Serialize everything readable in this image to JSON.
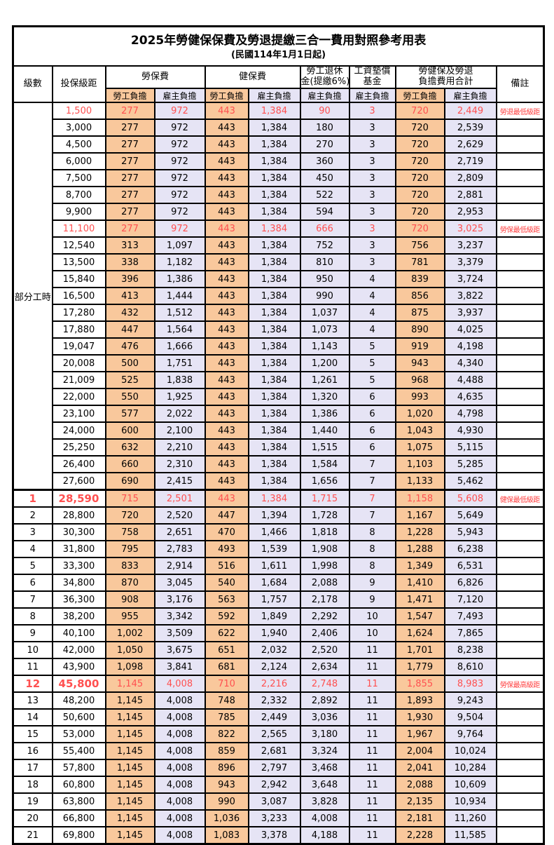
{
  "title": "2025年勞健保保費及勞退提繳三合一費用對照參考用表",
  "subtitle": "(民國114年1月1日起)",
  "header": {
    "level": "級數",
    "bracket": "投保級距",
    "labor": "勞保費",
    "health": "健保費",
    "pension_line1": "勞工退休",
    "pension_line2": "金(提繳6%)",
    "wage_line1": "工資墊償",
    "wage_line2": "基金",
    "total_line1": "勞健保及勞退",
    "total_line2": "負擔費用合計",
    "remark": "備註",
    "employee": "勞工負擔",
    "employer": "雇主負擔"
  },
  "part_time_label": "部分工時",
  "colors": {
    "employee_bg": "#F9C89C",
    "employer_bg": "#E6E4F5",
    "highlight_text": "#FF5050",
    "remark_text": "#FF4040",
    "border": "#000000"
  },
  "rows": [
    {
      "level": "",
      "bracket": "1,500",
      "values": [
        "277",
        "972",
        "443",
        "1,384",
        "90",
        "3",
        "720",
        "2,449"
      ],
      "remark": "勞退最低級距",
      "highlight": true,
      "bold": false
    },
    {
      "level": "",
      "bracket": "3,000",
      "values": [
        "277",
        "972",
        "443",
        "1,384",
        "180",
        "3",
        "720",
        "2,539"
      ],
      "remark": "",
      "highlight": false,
      "bold": false
    },
    {
      "level": "",
      "bracket": "4,500",
      "values": [
        "277",
        "972",
        "443",
        "1,384",
        "270",
        "3",
        "720",
        "2,629"
      ],
      "remark": "",
      "highlight": false,
      "bold": false
    },
    {
      "level": "",
      "bracket": "6,000",
      "values": [
        "277",
        "972",
        "443",
        "1,384",
        "360",
        "3",
        "720",
        "2,719"
      ],
      "remark": "",
      "highlight": false,
      "bold": false
    },
    {
      "level": "",
      "bracket": "7,500",
      "values": [
        "277",
        "972",
        "443",
        "1,384",
        "450",
        "3",
        "720",
        "2,809"
      ],
      "remark": "",
      "highlight": false,
      "bold": false
    },
    {
      "level": "",
      "bracket": "8,700",
      "values": [
        "277",
        "972",
        "443",
        "1,384",
        "522",
        "3",
        "720",
        "2,881"
      ],
      "remark": "",
      "highlight": false,
      "bold": false
    },
    {
      "level": "",
      "bracket": "9,900",
      "values": [
        "277",
        "972",
        "443",
        "1,384",
        "594",
        "3",
        "720",
        "2,953"
      ],
      "remark": "",
      "highlight": false,
      "bold": false
    },
    {
      "level": "",
      "bracket": "11,100",
      "values": [
        "277",
        "972",
        "443",
        "1,384",
        "666",
        "3",
        "720",
        "3,025"
      ],
      "remark": "勞保最低級距",
      "highlight": true,
      "bold": false
    },
    {
      "level": "",
      "bracket": "12,540",
      "values": [
        "313",
        "1,097",
        "443",
        "1,384",
        "752",
        "3",
        "756",
        "3,237"
      ],
      "remark": "",
      "highlight": false,
      "bold": false
    },
    {
      "level": "",
      "bracket": "13,500",
      "values": [
        "338",
        "1,182",
        "443",
        "1,384",
        "810",
        "3",
        "781",
        "3,379"
      ],
      "remark": "",
      "highlight": false,
      "bold": false
    },
    {
      "level": "",
      "bracket": "15,840",
      "values": [
        "396",
        "1,386",
        "443",
        "1,384",
        "950",
        "4",
        "839",
        "3,724"
      ],
      "remark": "",
      "highlight": false,
      "bold": false
    },
    {
      "level": "",
      "bracket": "16,500",
      "values": [
        "413",
        "1,444",
        "443",
        "1,384",
        "990",
        "4",
        "856",
        "3,822"
      ],
      "remark": "",
      "highlight": false,
      "bold": false
    },
    {
      "level": "",
      "bracket": "17,280",
      "values": [
        "432",
        "1,512",
        "443",
        "1,384",
        "1,037",
        "4",
        "875",
        "3,937"
      ],
      "remark": "",
      "highlight": false,
      "bold": false
    },
    {
      "level": "",
      "bracket": "17,880",
      "values": [
        "447",
        "1,564",
        "443",
        "1,384",
        "1,073",
        "4",
        "890",
        "4,025"
      ],
      "remark": "",
      "highlight": false,
      "bold": false
    },
    {
      "level": "",
      "bracket": "19,047",
      "values": [
        "476",
        "1,666",
        "443",
        "1,384",
        "1,143",
        "5",
        "919",
        "4,198"
      ],
      "remark": "",
      "highlight": false,
      "bold": false
    },
    {
      "level": "",
      "bracket": "20,008",
      "values": [
        "500",
        "1,751",
        "443",
        "1,384",
        "1,200",
        "5",
        "943",
        "4,340"
      ],
      "remark": "",
      "highlight": false,
      "bold": false
    },
    {
      "level": "",
      "bracket": "21,009",
      "values": [
        "525",
        "1,838",
        "443",
        "1,384",
        "1,261",
        "5",
        "968",
        "4,488"
      ],
      "remark": "",
      "highlight": false,
      "bold": false
    },
    {
      "level": "",
      "bracket": "22,000",
      "values": [
        "550",
        "1,925",
        "443",
        "1,384",
        "1,320",
        "6",
        "993",
        "4,635"
      ],
      "remark": "",
      "highlight": false,
      "bold": false
    },
    {
      "level": "",
      "bracket": "23,100",
      "values": [
        "577",
        "2,022",
        "443",
        "1,384",
        "1,386",
        "6",
        "1,020",
        "4,798"
      ],
      "remark": "",
      "highlight": false,
      "bold": false
    },
    {
      "level": "",
      "bracket": "24,000",
      "values": [
        "600",
        "2,100",
        "443",
        "1,384",
        "1,440",
        "6",
        "1,043",
        "4,930"
      ],
      "remark": "",
      "highlight": false,
      "bold": false
    },
    {
      "level": "",
      "bracket": "25,250",
      "values": [
        "632",
        "2,210",
        "443",
        "1,384",
        "1,515",
        "6",
        "1,075",
        "5,115"
      ],
      "remark": "",
      "highlight": false,
      "bold": false
    },
    {
      "level": "",
      "bracket": "26,400",
      "values": [
        "660",
        "2,310",
        "443",
        "1,384",
        "1,584",
        "7",
        "1,103",
        "5,285"
      ],
      "remark": "",
      "highlight": false,
      "bold": false
    },
    {
      "level": "",
      "bracket": "27,600",
      "values": [
        "690",
        "2,415",
        "443",
        "1,384",
        "1,656",
        "7",
        "1,133",
        "5,462"
      ],
      "remark": "",
      "highlight": false,
      "bold": false
    },
    {
      "level": "1",
      "bracket": "28,590",
      "values": [
        "715",
        "2,501",
        "443",
        "1,384",
        "1,715",
        "7",
        "1,158",
        "5,608"
      ],
      "remark": "健保最低級距",
      "highlight": true,
      "bold": true
    },
    {
      "level": "2",
      "bracket": "28,800",
      "values": [
        "720",
        "2,520",
        "447",
        "1,394",
        "1,728",
        "7",
        "1,167",
        "5,649"
      ],
      "remark": "",
      "highlight": false,
      "bold": false
    },
    {
      "level": "3",
      "bracket": "30,300",
      "values": [
        "758",
        "2,651",
        "470",
        "1,466",
        "1,818",
        "8",
        "1,228",
        "5,943"
      ],
      "remark": "",
      "highlight": false,
      "bold": false
    },
    {
      "level": "4",
      "bracket": "31,800",
      "values": [
        "795",
        "2,783",
        "493",
        "1,539",
        "1,908",
        "8",
        "1,288",
        "6,238"
      ],
      "remark": "",
      "highlight": false,
      "bold": false
    },
    {
      "level": "5",
      "bracket": "33,300",
      "values": [
        "833",
        "2,914",
        "516",
        "1,611",
        "1,998",
        "8",
        "1,349",
        "6,531"
      ],
      "remark": "",
      "highlight": false,
      "bold": false
    },
    {
      "level": "6",
      "bracket": "34,800",
      "values": [
        "870",
        "3,045",
        "540",
        "1,684",
        "2,088",
        "9",
        "1,410",
        "6,826"
      ],
      "remark": "",
      "highlight": false,
      "bold": false
    },
    {
      "level": "7",
      "bracket": "36,300",
      "values": [
        "908",
        "3,176",
        "563",
        "1,757",
        "2,178",
        "9",
        "1,471",
        "7,120"
      ],
      "remark": "",
      "highlight": false,
      "bold": false
    },
    {
      "level": "8",
      "bracket": "38,200",
      "values": [
        "955",
        "3,342",
        "592",
        "1,849",
        "2,292",
        "10",
        "1,547",
        "7,493"
      ],
      "remark": "",
      "highlight": false,
      "bold": false
    },
    {
      "level": "9",
      "bracket": "40,100",
      "values": [
        "1,002",
        "3,509",
        "622",
        "1,940",
        "2,406",
        "10",
        "1,624",
        "7,865"
      ],
      "remark": "",
      "highlight": false,
      "bold": false
    },
    {
      "level": "10",
      "bracket": "42,000",
      "values": [
        "1,050",
        "3,675",
        "651",
        "2,032",
        "2,520",
        "11",
        "1,701",
        "8,238"
      ],
      "remark": "",
      "highlight": false,
      "bold": false
    },
    {
      "level": "11",
      "bracket": "43,900",
      "values": [
        "1,098",
        "3,841",
        "681",
        "2,124",
        "2,634",
        "11",
        "1,779",
        "8,610"
      ],
      "remark": "",
      "highlight": false,
      "bold": false
    },
    {
      "level": "12",
      "bracket": "45,800",
      "values": [
        "1,145",
        "4,008",
        "710",
        "2,216",
        "2,748",
        "11",
        "1,855",
        "8,983"
      ],
      "remark": "勞保最高級距",
      "highlight": true,
      "bold": true
    },
    {
      "level": "13",
      "bracket": "48,200",
      "values": [
        "1,145",
        "4,008",
        "748",
        "2,332",
        "2,892",
        "11",
        "1,893",
        "9,243"
      ],
      "remark": "",
      "highlight": false,
      "bold": false
    },
    {
      "level": "14",
      "bracket": "50,600",
      "values": [
        "1,145",
        "4,008",
        "785",
        "2,449",
        "3,036",
        "11",
        "1,930",
        "9,504"
      ],
      "remark": "",
      "highlight": false,
      "bold": false
    },
    {
      "level": "15",
      "bracket": "53,000",
      "values": [
        "1,145",
        "4,008",
        "822",
        "2,565",
        "3,180",
        "11",
        "1,967",
        "9,764"
      ],
      "remark": "",
      "highlight": false,
      "bold": false
    },
    {
      "level": "16",
      "bracket": "55,400",
      "values": [
        "1,145",
        "4,008",
        "859",
        "2,681",
        "3,324",
        "11",
        "2,004",
        "10,024"
      ],
      "remark": "",
      "highlight": false,
      "bold": false
    },
    {
      "level": "17",
      "bracket": "57,800",
      "values": [
        "1,145",
        "4,008",
        "896",
        "2,797",
        "3,468",
        "11",
        "2,041",
        "10,284"
      ],
      "remark": "",
      "highlight": false,
      "bold": false
    },
    {
      "level": "18",
      "bracket": "60,800",
      "values": [
        "1,145",
        "4,008",
        "943",
        "2,942",
        "3,648",
        "11",
        "2,088",
        "10,609"
      ],
      "remark": "",
      "highlight": false,
      "bold": false
    },
    {
      "level": "19",
      "bracket": "63,800",
      "values": [
        "1,145",
        "4,008",
        "990",
        "3,087",
        "3,828",
        "11",
        "2,135",
        "10,934"
      ],
      "remark": "",
      "highlight": false,
      "bold": false
    },
    {
      "level": "20",
      "bracket": "66,800",
      "values": [
        "1,145",
        "4,008",
        "1,036",
        "3,233",
        "4,008",
        "11",
        "2,181",
        "11,260"
      ],
      "remark": "",
      "highlight": false,
      "bold": false
    },
    {
      "level": "21",
      "bracket": "69,800",
      "values": [
        "1,145",
        "4,008",
        "1,083",
        "3,378",
        "4,188",
        "11",
        "2,228",
        "11,585"
      ],
      "remark": "",
      "highlight": false,
      "bold": false
    }
  ]
}
